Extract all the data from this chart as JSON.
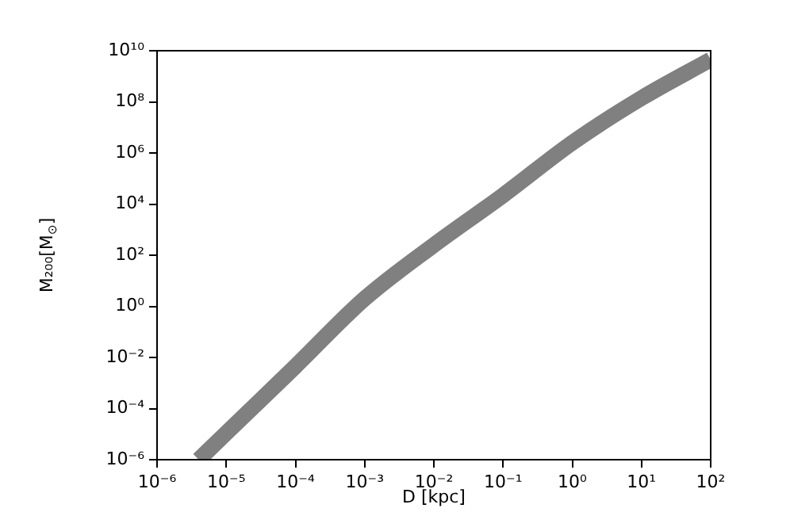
{
  "chart_data": {
    "type": "line",
    "xlabel": "D [kpc]",
    "ylabel": "M₂₀₀[M$_{⊙}$]",
    "log": "xy",
    "grid": false,
    "legend": false,
    "marker": "none",
    "line_style": "solid",
    "xlim": [
      1e-06,
      100
    ],
    "ylim": [
      1e-06,
      10000000000.0
    ],
    "xticks": [
      {
        "value": 1e-06,
        "label": "10⁻⁶"
      },
      {
        "value": 1e-05,
        "label": "10⁻⁵"
      },
      {
        "value": 0.0001,
        "label": "10⁻⁴"
      },
      {
        "value": 0.001,
        "label": "10⁻³"
      },
      {
        "value": 0.01,
        "label": "10⁻²"
      },
      {
        "value": 0.1,
        "label": "10⁻¹"
      },
      {
        "value": 1,
        "label": "10⁰"
      },
      {
        "value": 10,
        "label": "10¹"
      },
      {
        "value": 100,
        "label": "10²"
      }
    ],
    "yticks": [
      {
        "value": 1e-06,
        "label": "10⁻⁶"
      },
      {
        "value": 0.0001,
        "label": "10⁻⁴"
      },
      {
        "value": 0.01,
        "label": "10⁻²"
      },
      {
        "value": 1,
        "label": "10⁰"
      },
      {
        "value": 100,
        "label": "10²"
      },
      {
        "value": 10000,
        "label": "10⁴"
      },
      {
        "value": 1000000,
        "label": "10⁶"
      },
      {
        "value": 100000000,
        "label": "10⁸"
      },
      {
        "value": 10000000000,
        "label": "10¹⁰"
      }
    ],
    "x": [
      4e-06,
      1e-05,
      0.0001,
      0.001,
      0.01,
      0.1,
      1,
      10,
      100
    ],
    "series": [
      {
        "color": "#808080",
        "values": [
          1e-06,
          1.1e-05,
          0.0045,
          2,
          250,
          22000,
          2500000,
          140000000,
          4500000000
        ]
      }
    ]
  }
}
